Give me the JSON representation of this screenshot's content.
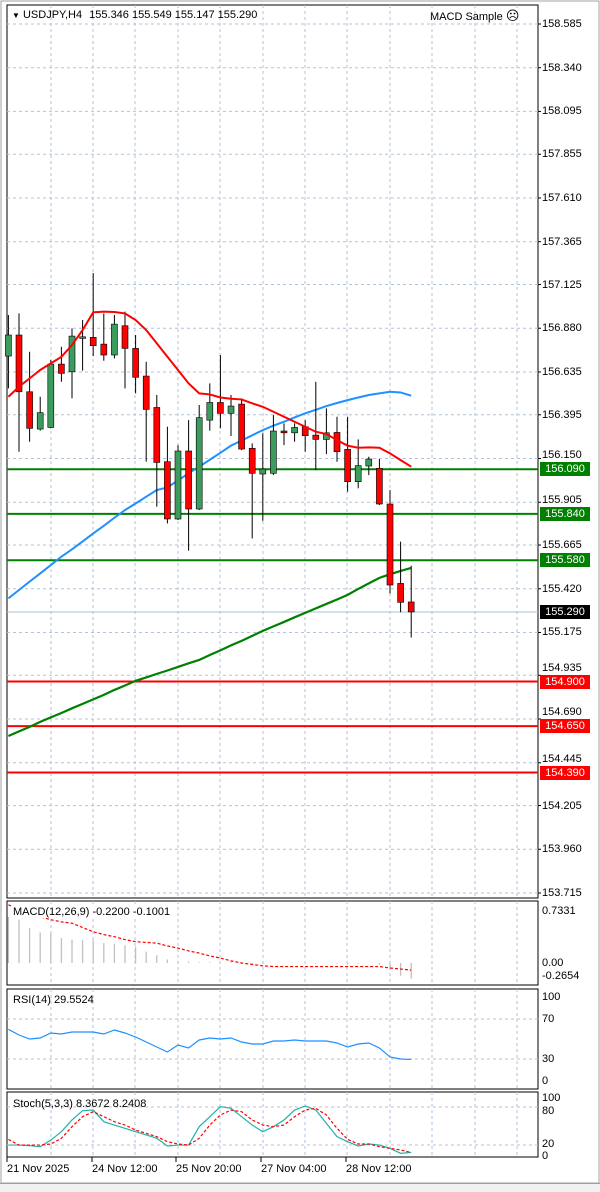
{
  "header": {
    "symbol": "USDJPY,H4",
    "ohlc": "155.346 155.549 155.147 155.290",
    "expert": "MACD Sample",
    "expert_icon": "sad-face-icon"
  },
  "colors": {
    "bull": "#3c9c5e",
    "bear": "#ff0000",
    "grid": "#b0c4de",
    "ma_fast": "#ff0000",
    "ma_mid": "#1e90ff",
    "ma_slow": "#008000",
    "support": "#008000",
    "resistance": "#ff0000",
    "current": "#000000"
  },
  "price_axis": [
    "158.585",
    "158.340",
    "158.095",
    "157.855",
    "157.610",
    "157.365",
    "157.125",
    "156.880",
    "156.635",
    "156.395",
    "156.150",
    "155.905",
    "155.665",
    "155.420",
    "155.175",
    "154.935",
    "154.690",
    "154.445",
    "154.205",
    "153.960",
    "153.715"
  ],
  "levels": [
    {
      "price": "156.090",
      "type": "support"
    },
    {
      "price": "155.840",
      "type": "support"
    },
    {
      "price": "155.580",
      "type": "support"
    },
    {
      "price": "154.900",
      "type": "resistance"
    },
    {
      "price": "154.650",
      "type": "resistance"
    },
    {
      "price": "154.390",
      "type": "resistance"
    }
  ],
  "current_price": "155.290",
  "time_axis": [
    "21 Nov 2025",
    "24 Nov 12:00",
    "25 Nov 20:00",
    "27 Nov 04:00",
    "28 Nov 12:00"
  ],
  "chart_data": {
    "type": "candlestick",
    "ylim": [
      153.715,
      158.585
    ],
    "candles": [
      [
        156.724,
        156.954,
        156.543,
        156.842
      ],
      [
        156.842,
        156.963,
        156.188,
        156.524
      ],
      [
        156.524,
        156.748,
        156.244,
        156.319
      ],
      [
        156.315,
        156.496,
        156.306,
        156.407
      ],
      [
        156.324,
        156.702,
        156.319,
        156.679
      ],
      [
        156.679,
        156.776,
        156.58,
        156.627
      ],
      [
        156.636,
        156.879,
        156.487,
        156.836
      ],
      [
        156.823,
        156.926,
        156.642,
        156.832
      ],
      [
        156.829,
        157.189,
        156.724,
        156.782
      ],
      [
        156.791,
        156.963,
        156.698,
        156.73
      ],
      [
        156.73,
        156.954,
        156.711,
        156.903
      ],
      [
        156.894,
        156.973,
        156.543,
        156.767
      ],
      [
        156.767,
        156.842,
        156.515,
        156.605
      ],
      [
        156.612,
        156.692,
        156.132,
        156.425
      ],
      [
        156.436,
        156.506,
        155.88,
        156.128
      ],
      [
        156.132,
        156.328,
        155.786,
        155.811
      ],
      [
        155.811,
        156.225,
        155.805,
        156.192
      ],
      [
        156.192,
        156.365,
        155.633,
        155.867
      ],
      [
        155.867,
        156.45,
        155.861,
        156.379
      ],
      [
        156.365,
        156.571,
        156.306,
        156.464
      ],
      [
        156.464,
        156.73,
        156.319,
        156.403
      ],
      [
        156.403,
        156.506,
        156.276,
        156.444
      ],
      [
        156.455,
        156.487,
        156.197,
        156.203
      ],
      [
        156.207,
        156.235,
        155.702,
        156.067
      ],
      [
        156.063,
        156.291,
        155.801,
        156.091
      ],
      [
        156.067,
        156.393,
        156.057,
        156.304
      ],
      [
        156.304,
        156.347,
        156.225,
        156.294
      ],
      [
        156.294,
        156.347,
        156.244,
        156.324
      ],
      [
        156.328,
        156.365,
        156.188,
        156.278
      ],
      [
        156.281,
        156.58,
        156.085,
        156.257
      ],
      [
        156.257,
        156.431,
        156.175,
        156.294
      ],
      [
        156.296,
        156.384,
        156.132,
        156.188
      ],
      [
        156.201,
        156.384,
        155.964,
        156.02
      ],
      [
        156.02,
        156.257,
        155.983,
        156.11
      ],
      [
        156.108,
        156.16,
        156.057,
        156.147
      ],
      [
        156.095,
        156.147,
        155.889,
        155.895
      ],
      [
        155.895,
        155.973,
        155.394,
        155.441
      ],
      [
        155.45,
        155.684,
        155.288,
        155.344
      ],
      [
        155.346,
        155.549,
        155.147,
        155.29
      ]
    ],
    "ma_fast": [
      156.496,
      156.552,
      156.599,
      156.646,
      156.683,
      156.72,
      156.786,
      156.87,
      156.969,
      156.973,
      156.971,
      156.963,
      156.926,
      156.87,
      156.795,
      156.72,
      156.646,
      156.571,
      156.515,
      156.509,
      156.492,
      156.485,
      156.481,
      156.459,
      156.44,
      156.412,
      156.384,
      156.356,
      156.328,
      156.3,
      156.287,
      156.253,
      156.222,
      156.21,
      156.212,
      156.21,
      156.179,
      156.141,
      156.104
    ],
    "ma_mid": [
      155.366,
      155.413,
      155.46,
      155.506,
      155.553,
      155.6,
      155.641,
      155.685,
      155.73,
      155.773,
      155.818,
      155.861,
      155.898,
      155.936,
      155.973,
      155.988,
      156.027,
      156.067,
      156.104,
      156.143,
      156.182,
      156.222,
      156.251,
      156.28,
      156.309,
      156.334,
      156.356,
      156.38,
      156.403,
      156.423,
      156.444,
      156.461,
      156.477,
      156.492,
      156.506,
      156.515,
      156.524,
      156.52,
      156.502
    ],
    "ma_slow": [
      154.595,
      154.621,
      154.646,
      154.674,
      154.699,
      154.724,
      154.75,
      154.775,
      154.8,
      154.825,
      154.853,
      154.878,
      154.904,
      154.923,
      154.943,
      154.962,
      154.982,
      155.002,
      155.021,
      155.049,
      155.075,
      155.103,
      155.128,
      155.156,
      155.184,
      155.209,
      155.234,
      155.26,
      155.285,
      155.31,
      155.335,
      155.36,
      155.386,
      155.419,
      155.45,
      155.481,
      155.501,
      155.52,
      155.537
    ],
    "macd": {
      "label": "MACD(12,26,9) -0.2200 -0.1001",
      "axis": [
        "0.7331",
        "0.00",
        "-0.2654"
      ],
      "histogram": [
        0.65,
        0.61,
        0.49,
        0.43,
        0.42,
        0.35,
        0.33,
        0.32,
        0.32,
        0.28,
        0.27,
        0.25,
        0.23,
        0.16,
        0.11,
        0.05,
        0.03,
        0.02,
        0.01,
        0.01,
        0.0,
        0.01,
        0.0,
        -0.01,
        -0.01,
        0.0,
        0.0,
        0.0,
        0.0,
        -0.01,
        0.0,
        -0.01,
        -0.02,
        -0.01,
        0.0,
        -0.02,
        -0.1,
        -0.18,
        -0.22
      ],
      "signal": [
        0.82,
        0.76,
        0.7,
        0.65,
        0.61,
        0.58,
        0.56,
        0.5,
        0.44,
        0.4,
        0.37,
        0.33,
        0.3,
        0.29,
        0.28,
        0.24,
        0.21,
        0.17,
        0.14,
        0.1,
        0.07,
        0.03,
        0.0,
        -0.02,
        -0.04,
        -0.05,
        -0.05,
        -0.05,
        -0.05,
        -0.05,
        -0.05,
        -0.05,
        -0.05,
        -0.05,
        -0.05,
        -0.05,
        -0.07,
        -0.085,
        -0.1001
      ]
    },
    "rsi": {
      "label": "RSI(14) 29.5524",
      "axis": [
        "100",
        "70",
        "30",
        "0"
      ],
      "values": [
        59.7,
        54,
        50,
        51,
        56,
        55,
        57,
        57,
        57,
        55,
        59,
        56,
        52,
        47,
        42,
        37,
        44,
        41,
        49,
        51,
        50,
        51,
        47,
        45,
        45,
        48,
        48,
        49,
        48,
        48,
        48,
        46,
        42,
        45,
        46,
        41,
        32,
        30,
        29.55
      ]
    },
    "stoch": {
      "label": "Stoch(5,3,3) 8.3672 8.2408",
      "axis": [
        "100",
        "80",
        "20",
        "0"
      ],
      "main": [
        20.0,
        20.0,
        19.0,
        17.4,
        27.9,
        41.1,
        59.6,
        74.3,
        75.3,
        56.9,
        51.6,
        46.4,
        41.1,
        35.9,
        30.6,
        18.5,
        20.0,
        20.0,
        49.0,
        64.8,
        80.6,
        78.0,
        64.8,
        51.6,
        41.1,
        49.0,
        59.6,
        75.3,
        81.7,
        75.3,
        54.3,
        33.2,
        25.3,
        18.5,
        21.6,
        20.0,
        14.8,
        6.9,
        8.37
      ],
      "signal": [
        28.9,
        20.0,
        20.0,
        20.0,
        21.6,
        30.6,
        49.0,
        64.8,
        72.7,
        64.8,
        56.9,
        51.6,
        43.7,
        38.5,
        33.2,
        25.3,
        21.6,
        20.0,
        30.6,
        51.6,
        67.4,
        75.3,
        72.7,
        59.6,
        51.6,
        49.0,
        51.6,
        64.8,
        75.3,
        78.0,
        67.4,
        46.4,
        28.9,
        21.6,
        21.6,
        17.4,
        14.8,
        12.2,
        8.24
      ]
    }
  }
}
